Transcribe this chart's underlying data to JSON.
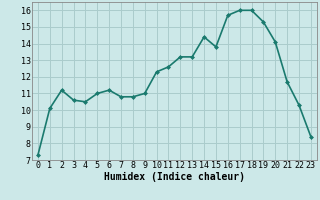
{
  "x": [
    0,
    1,
    2,
    3,
    4,
    5,
    6,
    7,
    8,
    9,
    10,
    11,
    12,
    13,
    14,
    15,
    16,
    17,
    18,
    19,
    20,
    21,
    22,
    23
  ],
  "y": [
    7.3,
    10.1,
    11.2,
    10.6,
    10.5,
    11.0,
    11.2,
    10.8,
    10.8,
    11.0,
    12.3,
    12.6,
    13.2,
    13.2,
    14.4,
    13.8,
    15.7,
    16.0,
    16.0,
    15.3,
    14.1,
    11.7,
    10.3,
    8.4
  ],
  "line_color": "#1a7a6e",
  "marker": "D",
  "marker_size": 2,
  "bg_color": "#cce8e8",
  "grid_color": "#aacccc",
  "xlabel": "Humidex (Indice chaleur)",
  "ylim": [
    7,
    16.5
  ],
  "xlim": [
    -0.5,
    23.5
  ],
  "yticks": [
    7,
    8,
    9,
    10,
    11,
    12,
    13,
    14,
    15,
    16
  ],
  "xticks": [
    0,
    1,
    2,
    3,
    4,
    5,
    6,
    7,
    8,
    9,
    10,
    11,
    12,
    13,
    14,
    15,
    16,
    17,
    18,
    19,
    20,
    21,
    22,
    23
  ],
  "xlabel_fontsize": 7,
  "tick_fontsize": 6,
  "line_width": 1.2
}
